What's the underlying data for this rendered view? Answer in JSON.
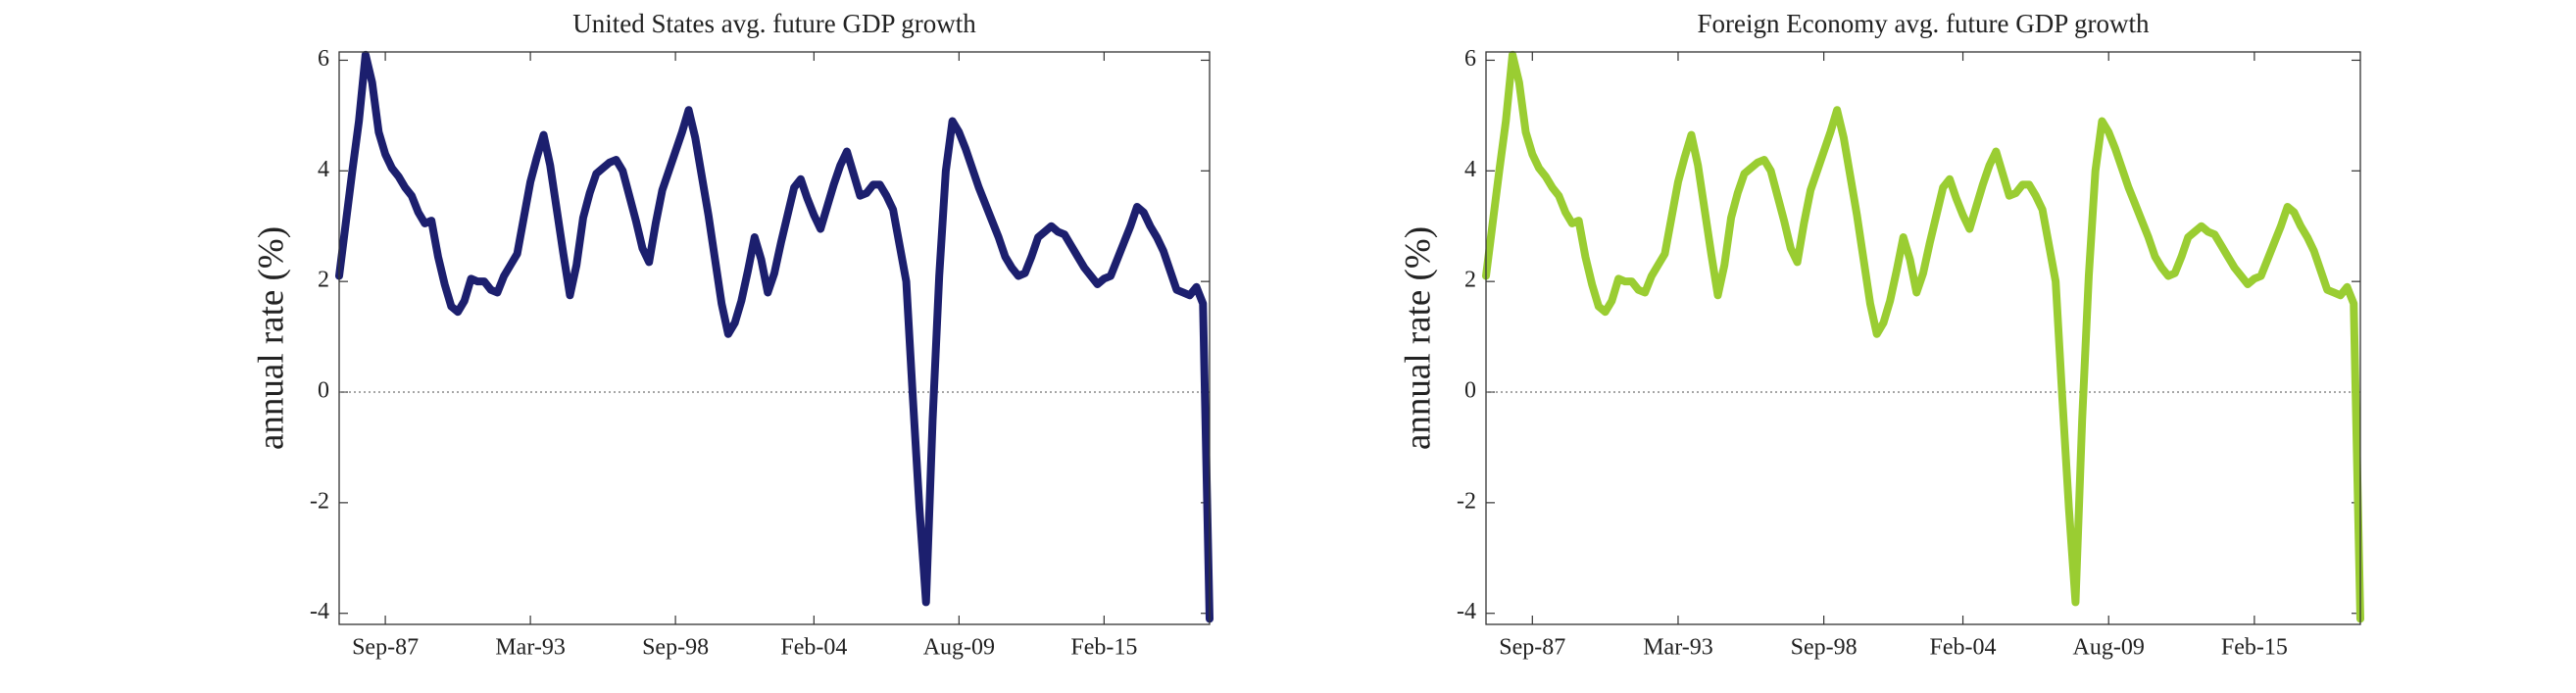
{
  "chart_data": [
    {
      "type": "line",
      "title": "United States avg. future GDP growth",
      "y_label": "annual rate (%)",
      "categories": [
        null,
        null,
        null,
        null,
        null,
        null,
        null,
        "Sep-87",
        null,
        null,
        null,
        null,
        null,
        null,
        null,
        null,
        null,
        null,
        null,
        null,
        null,
        null,
        null,
        null,
        null,
        null,
        null,
        null,
        null,
        "Mar-93",
        null,
        null,
        null,
        null,
        null,
        null,
        null,
        null,
        null,
        null,
        null,
        null,
        null,
        null,
        null,
        null,
        null,
        null,
        null,
        null,
        null,
        "Sep-98",
        null,
        null,
        null,
        null,
        null,
        null,
        null,
        null,
        null,
        null,
        null,
        null,
        null,
        null,
        null,
        null,
        null,
        null,
        null,
        null,
        "Feb-04",
        null,
        null,
        null,
        null,
        null,
        null,
        null,
        null,
        null,
        null,
        null,
        null,
        null,
        null,
        null,
        null,
        null,
        null,
        null,
        null,
        null,
        "Aug-09",
        null,
        null,
        null,
        null,
        null,
        null,
        null,
        null,
        null,
        null,
        null,
        null,
        null,
        null,
        null,
        null,
        null,
        null,
        null,
        null,
        null,
        "Feb-15",
        null,
        null,
        null,
        null,
        null,
        null,
        null,
        null,
        null,
        null,
        null,
        null,
        null,
        null,
        null,
        null
      ],
      "series": [
        {
          "name": "United States",
          "color": "#1c1f6e",
          "values": [
            2.1,
            3.05,
            4.0,
            4.9,
            6.1,
            5.6,
            4.7,
            4.3,
            4.05,
            3.9,
            3.7,
            3.55,
            3.25,
            3.05,
            3.1,
            2.45,
            1.95,
            1.55,
            1.45,
            1.65,
            2.05,
            2.0,
            2.0,
            1.85,
            1.8,
            2.1,
            2.3,
            2.5,
            3.15,
            3.8,
            4.25,
            4.65,
            4.1,
            3.3,
            2.5,
            1.75,
            2.3,
            3.15,
            3.6,
            3.95,
            4.05,
            4.15,
            4.2,
            4.0,
            3.55,
            3.1,
            2.6,
            2.35,
            3.05,
            3.65,
            4.0,
            4.35,
            4.7,
            5.1,
            4.6,
            3.9,
            3.2,
            2.4,
            1.6,
            1.05,
            1.25,
            1.65,
            2.2,
            2.8,
            2.4,
            1.8,
            2.15,
            2.7,
            3.2,
            3.7,
            3.85,
            3.5,
            3.2,
            2.95,
            3.35,
            3.75,
            4.1,
            4.35,
            3.95,
            3.55,
            3.6,
            3.75,
            3.75,
            3.55,
            3.3,
            2.65,
            2.0,
            -0.1,
            -2.1,
            -3.8,
            -0.5,
            2.1,
            4.0,
            4.9,
            4.7,
            4.4,
            4.05,
            3.7,
            3.4,
            3.1,
            2.8,
            2.45,
            2.25,
            2.1,
            2.15,
            2.45,
            2.8,
            2.9,
            3.0,
            2.9,
            2.85,
            2.65,
            2.45,
            2.25,
            2.1,
            1.95,
            2.05,
            2.1,
            2.4,
            2.7,
            3.0,
            3.35,
            3.25,
            3.0,
            2.8,
            2.55,
            2.2,
            1.85,
            1.8,
            1.75,
            1.9,
            1.6,
            -4.1
          ]
        }
      ],
      "ylim": [
        -4.2,
        6.15
      ],
      "yticks": [
        -4,
        -2,
        0,
        2,
        4,
        6
      ],
      "zero_line": true
    },
    {
      "type": "line",
      "title": "Foreign Economy avg. future GDP growth",
      "y_label": "annual rate (%)",
      "categories": [
        null,
        null,
        null,
        null,
        null,
        null,
        null,
        "Sep-87",
        null,
        null,
        null,
        null,
        null,
        null,
        null,
        null,
        null,
        null,
        null,
        null,
        null,
        null,
        null,
        null,
        null,
        null,
        null,
        null,
        null,
        "Mar-93",
        null,
        null,
        null,
        null,
        null,
        null,
        null,
        null,
        null,
        null,
        null,
        null,
        null,
        null,
        null,
        null,
        null,
        null,
        null,
        null,
        null,
        "Sep-98",
        null,
        null,
        null,
        null,
        null,
        null,
        null,
        null,
        null,
        null,
        null,
        null,
        null,
        null,
        null,
        null,
        null,
        null,
        null,
        null,
        "Feb-04",
        null,
        null,
        null,
        null,
        null,
        null,
        null,
        null,
        null,
        null,
        null,
        null,
        null,
        null,
        null,
        null,
        null,
        null,
        null,
        null,
        null,
        "Aug-09",
        null,
        null,
        null,
        null,
        null,
        null,
        null,
        null,
        null,
        null,
        null,
        null,
        null,
        null,
        null,
        null,
        null,
        null,
        null,
        null,
        null,
        "Feb-15",
        null,
        null,
        null,
        null,
        null,
        null,
        null,
        null,
        null,
        null,
        null,
        null,
        null,
        null,
        null,
        null
      ],
      "series": [
        {
          "name": "Foreign Economy",
          "color": "#9acd32",
          "values": [
            2.1,
            3.05,
            4.0,
            4.9,
            6.1,
            5.6,
            4.7,
            4.3,
            4.05,
            3.9,
            3.7,
            3.55,
            3.25,
            3.05,
            3.1,
            2.45,
            1.95,
            1.55,
            1.45,
            1.65,
            2.05,
            2.0,
            2.0,
            1.85,
            1.8,
            2.1,
            2.3,
            2.5,
            3.15,
            3.8,
            4.25,
            4.65,
            4.1,
            3.3,
            2.5,
            1.75,
            2.3,
            3.15,
            3.6,
            3.95,
            4.05,
            4.15,
            4.2,
            4.0,
            3.55,
            3.1,
            2.6,
            2.35,
            3.05,
            3.65,
            4.0,
            4.35,
            4.7,
            5.1,
            4.6,
            3.9,
            3.2,
            2.4,
            1.6,
            1.05,
            1.25,
            1.65,
            2.2,
            2.8,
            2.4,
            1.8,
            2.15,
            2.7,
            3.2,
            3.7,
            3.85,
            3.5,
            3.2,
            2.95,
            3.35,
            3.75,
            4.1,
            4.35,
            3.95,
            3.55,
            3.6,
            3.75,
            3.75,
            3.55,
            3.3,
            2.65,
            2.0,
            -0.1,
            -2.1,
            -3.8,
            -0.5,
            2.1,
            4.0,
            4.9,
            4.7,
            4.4,
            4.05,
            3.7,
            3.4,
            3.1,
            2.8,
            2.45,
            2.25,
            2.1,
            2.15,
            2.45,
            2.8,
            2.9,
            3.0,
            2.9,
            2.85,
            2.65,
            2.45,
            2.25,
            2.1,
            1.95,
            2.05,
            2.1,
            2.4,
            2.7,
            3.0,
            3.35,
            3.25,
            3.0,
            2.8,
            2.55,
            2.2,
            1.85,
            1.8,
            1.75,
            1.9,
            1.6,
            -4.1
          ]
        }
      ],
      "ylim": [
        -4.2,
        6.15
      ],
      "yticks": [
        -4,
        -2,
        0,
        2,
        4,
        6
      ],
      "zero_line": true
    }
  ]
}
